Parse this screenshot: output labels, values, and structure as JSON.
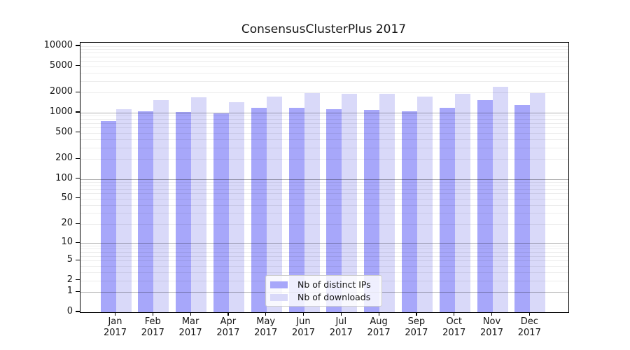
{
  "title": "ConsensusClusterPlus 2017",
  "colors": {
    "ips": "#a7a7fa",
    "downloads": "#d9d9f9",
    "axis": "#000000"
  },
  "legend": {
    "items": [
      {
        "label": "Nb of distinct IPs",
        "color_key": "ips"
      },
      {
        "label": "Nb of downloads",
        "color_key": "downloads"
      }
    ]
  },
  "chart_data": {
    "type": "bar",
    "title": "ConsensusClusterPlus 2017",
    "categories": [
      "Jan 2017",
      "Feb 2017",
      "Mar 2017",
      "Apr 2017",
      "May 2017",
      "Jun 2017",
      "Jul 2017",
      "Aug 2017",
      "Sep 2017",
      "Oct 2017",
      "Nov 2017",
      "Dec 2017"
    ],
    "series": [
      {
        "name": "Nb of distinct IPs",
        "values": [
          750,
          1050,
          1020,
          975,
          1180,
          1180,
          1120,
          1100,
          1050,
          1180,
          1540,
          1300
        ]
      },
      {
        "name": "Nb of downloads",
        "values": [
          1120,
          1550,
          1700,
          1440,
          1730,
          1960,
          1910,
          1920,
          1740,
          1910,
          2440,
          1960
        ]
      }
    ],
    "xlabel": "",
    "ylabel": "",
    "y_scale": "log10(value+1)",
    "y_tick_labels": [
      0,
      1,
      2,
      5,
      10,
      20,
      50,
      100,
      200,
      500,
      1000,
      2000,
      5000,
      10000
    ],
    "ylim": [
      0,
      10000
    ],
    "grid": "horizontal log minor+major, drawn over bars",
    "legend_position": "lower center"
  }
}
